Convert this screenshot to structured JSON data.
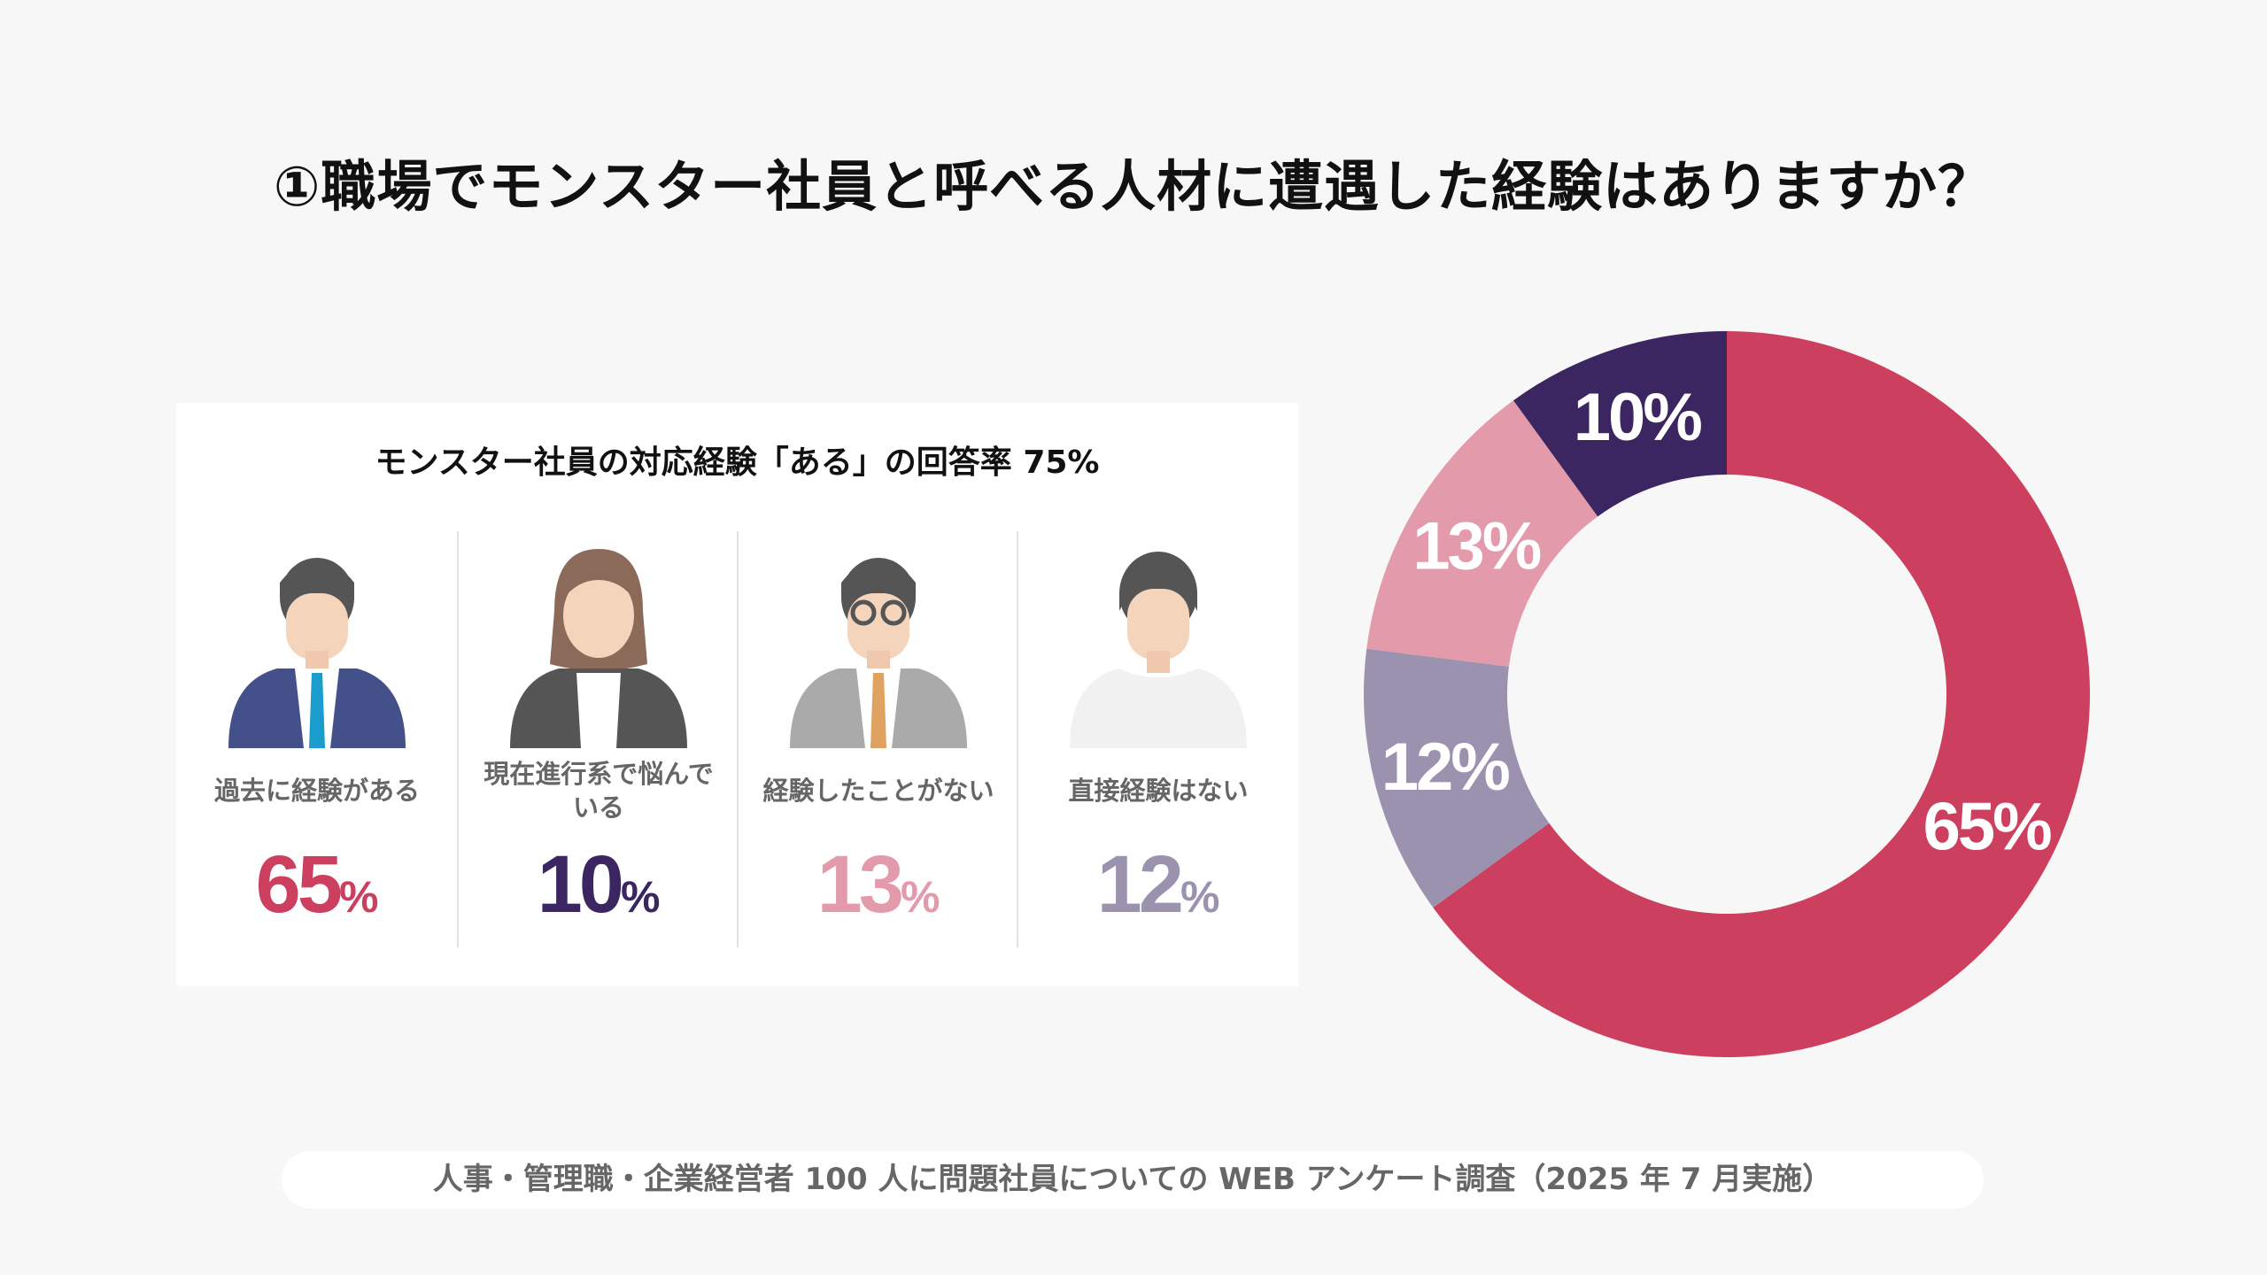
{
  "title": "①職場でモンスター社員と呼べる人材に遭遇した経験はありますか？",
  "card": {
    "title": "モンスター社員の対応経験「ある」の回答率 75%",
    "items": [
      {
        "label": "過去に経験がある",
        "value": "65",
        "unit": "%",
        "color": "#cc3f5e",
        "icon": "businessman-navy-suit-icon"
      },
      {
        "label": "現在進行系で悩んでいる",
        "value": "10",
        "unit": "%",
        "color": "#3b2661",
        "icon": "businesswoman-icon"
      },
      {
        "label": "経験したことがない",
        "value": "13",
        "unit": "%",
        "color": "#e39aab",
        "icon": "man-glasses-grey-suit-icon"
      },
      {
        "label": "直接経験はない",
        "value": "12",
        "unit": "%",
        "color": "#9b92b0",
        "icon": "casual-person-icon"
      }
    ]
  },
  "chart_data": {
    "type": "pie",
    "donut": true,
    "start": "top",
    "direction": "clockwise",
    "slices": [
      {
        "label": "65%",
        "value": 65,
        "color": "#cc3f5e"
      },
      {
        "label": "12%",
        "value": 12,
        "color": "#9b92b0"
      },
      {
        "label": "13%",
        "value": 13,
        "color": "#e39aab"
      },
      {
        "label": "10%",
        "value": 10,
        "color": "#3b2661"
      }
    ]
  },
  "footer": "人事・管理職・企業経営者 100 人に問題社員についての WEB アンケート調査（2025 年 7 月実施）"
}
